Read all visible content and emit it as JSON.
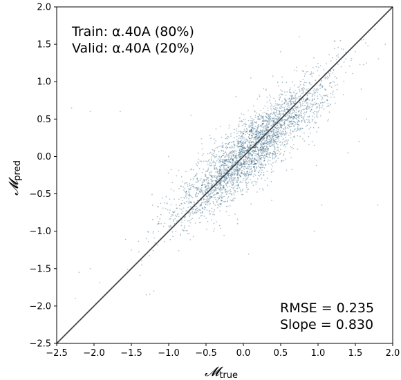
{
  "chart_data": {
    "type": "scatter",
    "title": "",
    "xlabel": "𝓜",
    "xlabel_sub": "true",
    "ylabel": "𝓜",
    "ylabel_sub": "pred",
    "xlim": [
      -2.5,
      2.0
    ],
    "ylim": [
      -2.5,
      2.0
    ],
    "xticks": [
      "−2.5",
      "−2.0",
      "−1.5",
      "−1.0",
      "−0.5",
      "0.0",
      "0.5",
      "1.0",
      "1.5",
      "2.0"
    ],
    "yticks": [
      "−2.5",
      "−2.0",
      "−1.5",
      "−1.0",
      "−0.5",
      "0.0",
      "0.5",
      "1.0",
      "1.5",
      "2.0"
    ],
    "xtick_values": [
      -2.5,
      -2.0,
      -1.5,
      -1.0,
      -0.5,
      0.0,
      0.5,
      1.0,
      1.5,
      2.0
    ],
    "ytick_values": [
      -2.5,
      -2.0,
      -1.5,
      -1.0,
      -0.5,
      0.0,
      0.5,
      1.0,
      1.5,
      2.0
    ],
    "grid": false,
    "point_color": "#1b4f72",
    "reference_line": {
      "from": [
        -2.5,
        -2.5
      ],
      "to": [
        2.0,
        2.0
      ],
      "color": "#444444"
    },
    "annotation_top": [
      "Train: α.40A (80%)",
      "Valid: α.40A (20%)"
    ],
    "annotation_bottom": [
      "RMSE = 0.235",
      "Slope = 0.830"
    ],
    "stats": {
      "rmse": 0.235,
      "slope": 0.83
    },
    "distribution": {
      "x_center": 0.1,
      "x_spread": 0.5,
      "slope": 0.83,
      "residual_sd": 0.235,
      "count": 3200
    },
    "points": [
      [
        -2.3,
        0.65
      ],
      [
        -2.05,
        0.6
      ],
      [
        -1.65,
        0.6
      ],
      [
        -1.0,
        0.0
      ],
      [
        -1.2,
        -1.8
      ],
      [
        -1.3,
        -1.85
      ],
      [
        -2.25,
        -1.9
      ],
      [
        -2.2,
        -1.55
      ],
      [
        -2.05,
        -1.5
      ],
      [
        0.5,
        1.4
      ],
      [
        0.75,
        1.6
      ],
      [
        1.3,
        1.55
      ],
      [
        1.5,
        1.4
      ],
      [
        1.9,
        1.5
      ],
      [
        1.65,
        1.25
      ],
      [
        1.8,
        -0.65
      ],
      [
        1.05,
        -0.65
      ],
      [
        0.95,
        -1.0
      ],
      [
        0.4,
        -0.2
      ],
      [
        1.4,
        0.05
      ],
      [
        1.55,
        0.2
      ],
      [
        1.2,
        1.0
      ],
      [
        1.65,
        0.5
      ],
      [
        -0.4,
        -1.0
      ],
      [
        -0.1,
        0.8
      ],
      [
        0.1,
        1.05
      ],
      [
        -0.7,
        0.55
      ],
      [
        -0.55,
        0.1
      ],
      [
        -0.2,
        -0.15
      ],
      [
        0.3,
        0.1
      ],
      [
        0.55,
        0.3
      ],
      [
        0.7,
        0.55
      ],
      [
        0.85,
        0.75
      ],
      [
        0.9,
        0.6
      ],
      [
        -0.3,
        -0.35
      ],
      [
        -0.6,
        -0.5
      ],
      [
        -0.85,
        -0.7
      ],
      [
        -1.1,
        -0.9
      ],
      [
        -1.3,
        -1.1
      ],
      [
        -1.5,
        -1.25
      ],
      [
        0.0,
        -0.1
      ],
      [
        0.2,
        0.25
      ]
    ]
  }
}
